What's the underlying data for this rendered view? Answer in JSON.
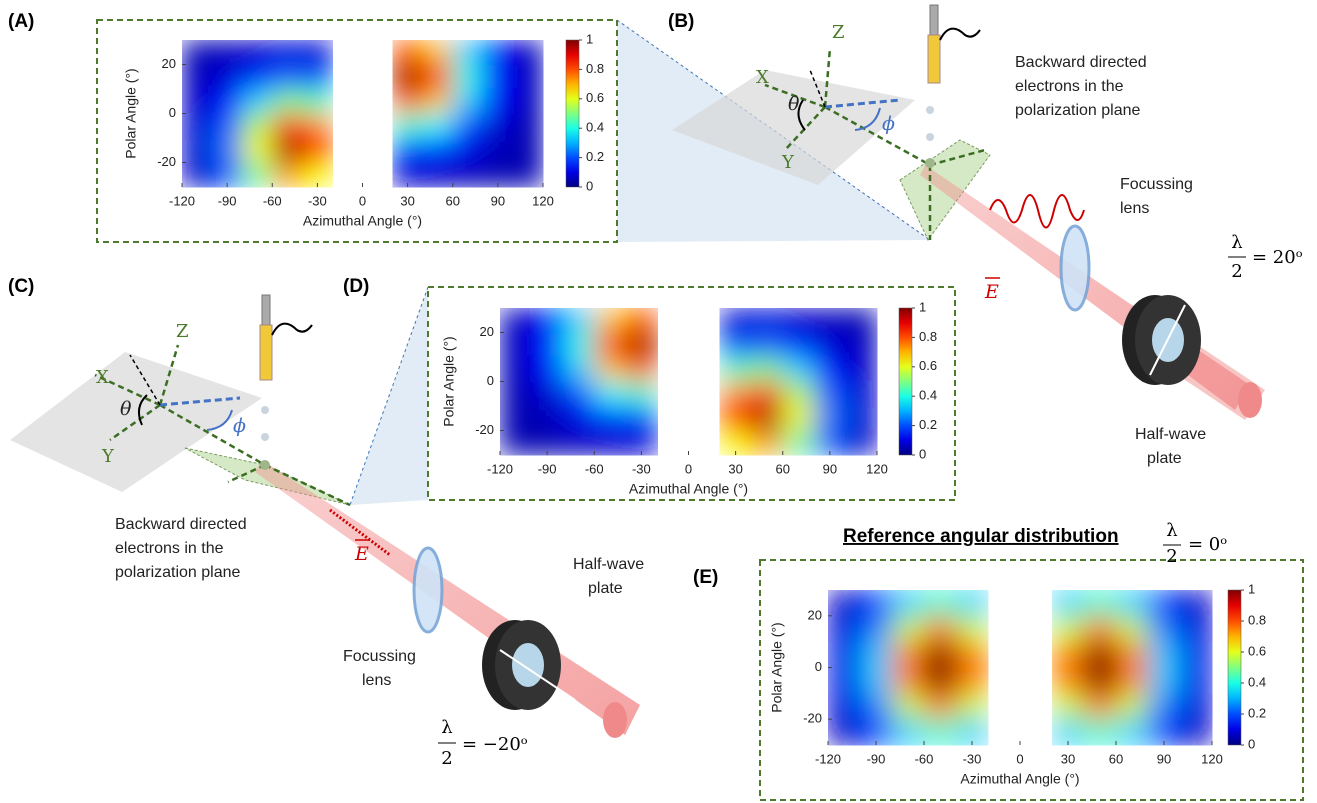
{
  "panel_labels": [
    "(A)",
    "(B)",
    "(C)",
    "(D)",
    "(E)"
  ],
  "diagram_b": {
    "caption": [
      "Backward directed",
      "electrons in the",
      "polarization plane"
    ],
    "lens": [
      "Focussing",
      "lens"
    ],
    "plate": [
      "Half-wave",
      "plate"
    ],
    "field": "E",
    "axes": [
      "X",
      "Z",
      "Y"
    ],
    "theta": "θ",
    "phi": "ϕ",
    "setting": {
      "numerator": "λ",
      "denominator": "2",
      "value": "= 20ᵒ"
    }
  },
  "diagram_c": {
    "caption": [
      "Backward directed",
      "electrons in the",
      "polarization plane"
    ],
    "lens": [
      "Focussing",
      "lens"
    ],
    "plate": [
      "Half-wave",
      "plate"
    ],
    "field": "E",
    "axes": [
      "X",
      "Z",
      "Y"
    ],
    "theta": "θ",
    "phi": "ϕ",
    "setting": {
      "numerator": "λ",
      "denominator": "2",
      "value": "= −20ᵒ"
    }
  },
  "reference": {
    "title": "Reference angular distribution",
    "setting": {
      "numerator": "λ",
      "denominator": "2",
      "value": "= 0ᵒ"
    }
  },
  "chart_data": [
    {
      "type": "heatmap",
      "xlabel": "Azimuthal Angle (°)",
      "ylabel": "Polar Angle (°)",
      "colormap": "jet",
      "x": [
        -110,
        -90,
        -70,
        -50,
        -30,
        -10,
        10,
        30,
        50,
        70,
        90,
        110
      ],
      "y": [
        25,
        15,
        5,
        -5,
        -15,
        -25
      ],
      "values": [
        [
          0.05,
          0.06,
          0.07,
          0.09,
          0.08,
          null,
          null,
          0.79,
          0.68,
          0.33,
          0.12,
          0.06
        ],
        [
          0.06,
          0.08,
          0.15,
          0.21,
          0.19,
          null,
          null,
          0.97,
          0.84,
          0.4,
          0.14,
          0.06
        ],
        [
          0.07,
          0.14,
          0.33,
          0.5,
          0.44,
          null,
          null,
          0.79,
          0.68,
          0.33,
          0.12,
          0.06
        ],
        [
          0.08,
          0.21,
          0.55,
          0.85,
          0.74,
          null,
          null,
          0.43,
          0.37,
          0.19,
          0.08,
          0.05
        ],
        [
          0.08,
          0.24,
          0.62,
          0.97,
          0.84,
          null,
          null,
          0.17,
          0.15,
          0.1,
          0.05,
          0.05
        ],
        [
          0.07,
          0.19,
          0.47,
          0.72,
          0.62,
          null,
          null,
          0.08,
          0.07,
          0.06,
          0.05,
          0.05
        ]
      ],
      "xlim": [
        -120,
        120
      ],
      "ylim": [
        -30,
        30
      ],
      "xticks": [
        -120,
        -90,
        -60,
        -30,
        0,
        30,
        60,
        90,
        120
      ],
      "yticks": [
        -20,
        0,
        20
      ],
      "clim": [
        0,
        1
      ],
      "cticks": [
        0,
        0.2,
        0.4,
        0.6,
        0.8,
        1
      ]
    },
    {
      "type": "heatmap",
      "xlabel": "Azimuthal Angle (°)",
      "ylabel": "Polar Angle (°)",
      "colormap": "jet",
      "x": [
        -110,
        -90,
        -70,
        -50,
        -30,
        -10,
        10,
        30,
        50,
        70,
        90,
        110
      ],
      "y": [
        25,
        15,
        5,
        -5,
        -15,
        -25
      ],
      "values": [
        [
          0.06,
          0.12,
          0.33,
          0.68,
          0.79,
          null,
          null,
          0.08,
          0.09,
          0.07,
          0.06,
          0.05
        ],
        [
          0.06,
          0.14,
          0.4,
          0.84,
          0.97,
          null,
          null,
          0.19,
          0.21,
          0.15,
          0.08,
          0.06
        ],
        [
          0.06,
          0.12,
          0.33,
          0.68,
          0.79,
          null,
          null,
          0.44,
          0.5,
          0.33,
          0.14,
          0.07
        ],
        [
          0.05,
          0.08,
          0.19,
          0.37,
          0.43,
          null,
          null,
          0.74,
          0.85,
          0.55,
          0.21,
          0.08
        ],
        [
          0.05,
          0.05,
          0.1,
          0.15,
          0.17,
          null,
          null,
          0.84,
          0.97,
          0.62,
          0.24,
          0.08
        ],
        [
          0.05,
          0.05,
          0.06,
          0.07,
          0.08,
          null,
          null,
          0.62,
          0.72,
          0.47,
          0.19,
          0.07
        ]
      ],
      "xlim": [
        -120,
        120
      ],
      "ylim": [
        -30,
        30
      ],
      "xticks": [
        -120,
        -90,
        -60,
        -30,
        0,
        30,
        60,
        90,
        120
      ],
      "yticks": [
        -20,
        0,
        20
      ],
      "clim": [
        0,
        1
      ],
      "cticks": [
        0,
        0.2,
        0.4,
        0.6,
        0.8,
        1
      ]
    },
    {
      "type": "heatmap",
      "xlabel": "Azimuthal Angle (°)",
      "ylabel": "Polar Angle (°)",
      "colormap": "jet",
      "x": [
        -110,
        -90,
        -70,
        -50,
        -30,
        -10,
        10,
        30,
        50,
        70,
        90,
        110
      ],
      "y": [
        25,
        15,
        5,
        -5,
        -15,
        -25
      ],
      "values": [
        [
          0.07,
          0.16,
          0.33,
          0.43,
          0.33,
          null,
          null,
          0.33,
          0.43,
          0.33,
          0.16,
          0.07
        ],
        [
          0.09,
          0.25,
          0.57,
          0.76,
          0.57,
          null,
          null,
          0.57,
          0.76,
          0.57,
          0.25,
          0.09
        ],
        [
          0.1,
          0.32,
          0.75,
          1,
          0.75,
          null,
          null,
          0.75,
          1,
          0.75,
          0.32,
          0.1
        ],
        [
          0.1,
          0.32,
          0.75,
          1,
          0.75,
          null,
          null,
          0.75,
          1,
          0.75,
          0.32,
          0.1
        ],
        [
          0.09,
          0.25,
          0.57,
          0.76,
          0.57,
          null,
          null,
          0.57,
          0.76,
          0.57,
          0.25,
          0.09
        ],
        [
          0.07,
          0.16,
          0.33,
          0.43,
          0.33,
          null,
          null,
          0.33,
          0.43,
          0.33,
          0.16,
          0.07
        ]
      ],
      "xlim": [
        -120,
        120
      ],
      "ylim": [
        -30,
        30
      ],
      "xticks": [
        -120,
        -90,
        -60,
        -30,
        0,
        30,
        60,
        90,
        120
      ],
      "yticks": [
        -20,
        0,
        20
      ],
      "clim": [
        0,
        1
      ],
      "cticks": [
        0,
        0.2,
        0.4,
        0.6,
        0.8,
        1
      ]
    }
  ]
}
